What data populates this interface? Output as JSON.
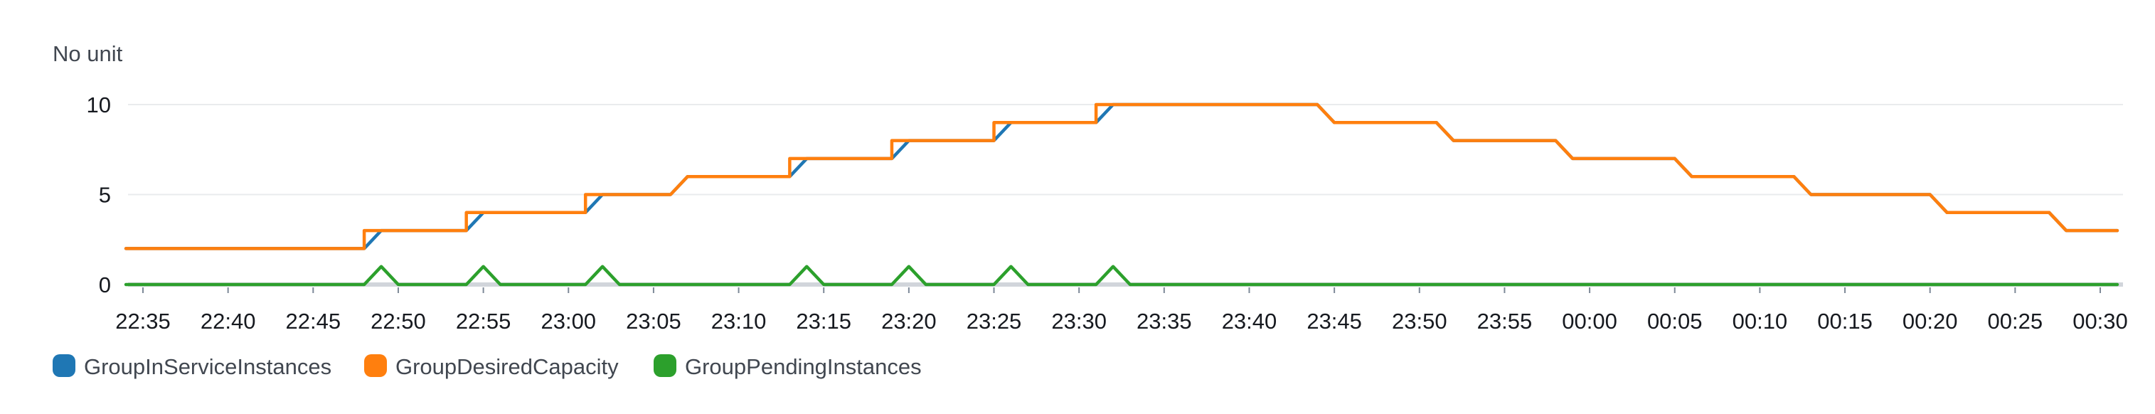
{
  "chart_data": {
    "type": "line",
    "unit_label": "No unit",
    "y_ticks": [
      0,
      5,
      10
    ],
    "ylim": [
      0,
      10
    ],
    "x_tick_labels": [
      "22:35",
      "22:40",
      "22:45",
      "22:50",
      "22:55",
      "23:00",
      "23:05",
      "23:10",
      "23:15",
      "23:20",
      "23:25",
      "23:30",
      "23:35",
      "23:40",
      "23:45",
      "23:50",
      "23:55",
      "00:00",
      "00:05",
      "00:10",
      "00:15",
      "00:20",
      "00:25",
      "00:30"
    ],
    "x_range": [
      "22:34",
      "00:32"
    ],
    "grid": true,
    "legend_position": "bottom-left",
    "series": [
      {
        "name": "GroupInServiceInstances",
        "color": "#1f77b4",
        "points": [
          [
            "22:34",
            2
          ],
          [
            "22:48",
            2
          ],
          [
            "22:49",
            3
          ],
          [
            "22:54",
            3
          ],
          [
            "22:55",
            4
          ],
          [
            "23:01",
            4
          ],
          [
            "23:02",
            5
          ],
          [
            "23:06",
            5
          ],
          [
            "23:07",
            6
          ],
          [
            "23:13",
            6
          ],
          [
            "23:14",
            7
          ],
          [
            "23:19",
            7
          ],
          [
            "23:20",
            8
          ],
          [
            "23:25",
            8
          ],
          [
            "23:26",
            9
          ],
          [
            "23:31",
            9
          ],
          [
            "23:32",
            10
          ],
          [
            "23:44",
            10
          ],
          [
            "23:45",
            9
          ],
          [
            "23:51",
            9
          ],
          [
            "23:52",
            8
          ],
          [
            "23:58",
            8
          ],
          [
            "23:59",
            7
          ],
          [
            "00:05",
            7
          ],
          [
            "00:06",
            6
          ],
          [
            "00:12",
            6
          ],
          [
            "00:13",
            5
          ],
          [
            "00:20",
            5
          ],
          [
            "00:21",
            4
          ],
          [
            "00:27",
            4
          ],
          [
            "00:28",
            3
          ],
          [
            "00:31",
            3
          ]
        ]
      },
      {
        "name": "GroupDesiredCapacity",
        "color": "#ff7f0e",
        "points": [
          [
            "22:34",
            2
          ],
          [
            "22:48",
            2
          ],
          [
            "22:48",
            3
          ],
          [
            "22:54",
            3
          ],
          [
            "22:54",
            4
          ],
          [
            "23:01",
            4
          ],
          [
            "23:01",
            5
          ],
          [
            "23:06",
            5
          ],
          [
            "23:07",
            6
          ],
          [
            "23:13",
            6
          ],
          [
            "23:13",
            7
          ],
          [
            "23:19",
            7
          ],
          [
            "23:19",
            8
          ],
          [
            "23:25",
            8
          ],
          [
            "23:25",
            9
          ],
          [
            "23:31",
            9
          ],
          [
            "23:31",
            10
          ],
          [
            "23:44",
            10
          ],
          [
            "23:45",
            9
          ],
          [
            "23:51",
            9
          ],
          [
            "23:52",
            8
          ],
          [
            "23:58",
            8
          ],
          [
            "23:59",
            7
          ],
          [
            "00:05",
            7
          ],
          [
            "00:06",
            6
          ],
          [
            "00:12",
            6
          ],
          [
            "00:13",
            5
          ],
          [
            "00:20",
            5
          ],
          [
            "00:21",
            4
          ],
          [
            "00:27",
            4
          ],
          [
            "00:28",
            3
          ],
          [
            "00:31",
            3
          ]
        ]
      },
      {
        "name": "GroupPendingInstances",
        "color": "#2ca02c",
        "points": [
          [
            "22:34",
            0
          ],
          [
            "22:48",
            0
          ],
          [
            "22:49",
            1
          ],
          [
            "22:50",
            0
          ],
          [
            "22:54",
            0
          ],
          [
            "22:55",
            1
          ],
          [
            "22:56",
            0
          ],
          [
            "23:01",
            0
          ],
          [
            "23:02",
            1
          ],
          [
            "23:03",
            0
          ],
          [
            "23:13",
            0
          ],
          [
            "23:14",
            1
          ],
          [
            "23:15",
            0
          ],
          [
            "23:19",
            0
          ],
          [
            "23:20",
            1
          ],
          [
            "23:21",
            0
          ],
          [
            "23:25",
            0
          ],
          [
            "23:26",
            1
          ],
          [
            "23:27",
            0
          ],
          [
            "23:31",
            0
          ],
          [
            "23:32",
            1
          ],
          [
            "23:33",
            0
          ],
          [
            "00:31",
            0
          ]
        ]
      }
    ]
  }
}
